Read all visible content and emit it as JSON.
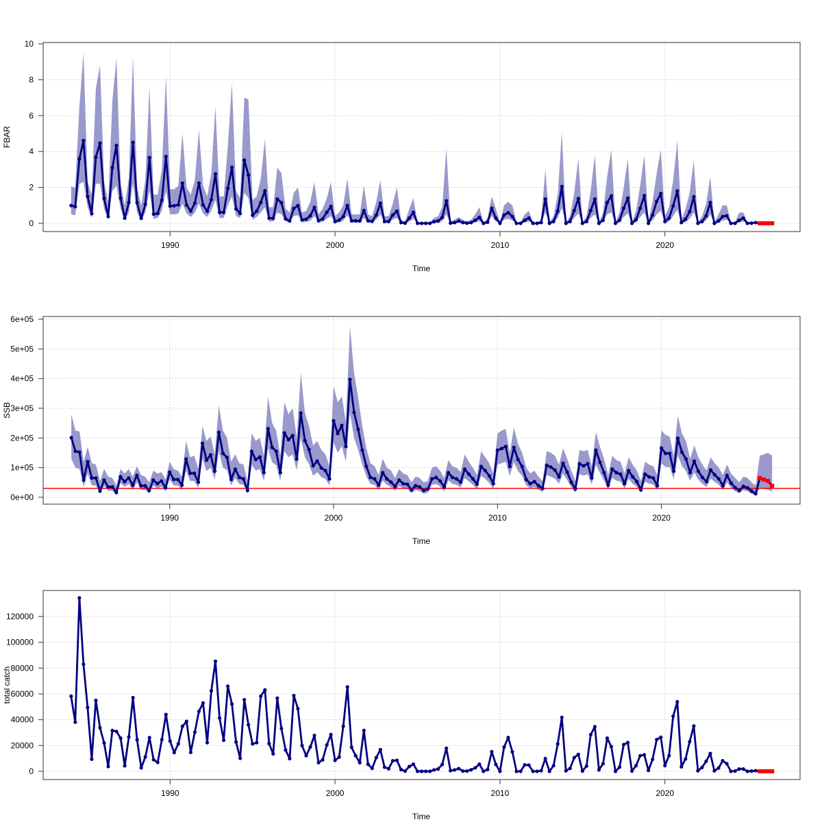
{
  "chart_data": [
    {
      "type": "line",
      "xlabel": "Time",
      "ylabel": "FBAR",
      "x_start": 1984.0,
      "x_step": 0.25,
      "xticks": [
        1990,
        2000,
        2010,
        2020
      ],
      "xtick_labels": [
        "1990",
        "2000",
        "2010",
        "2020"
      ],
      "yticks": [
        0,
        2,
        4,
        6,
        8,
        10
      ],
      "ytick_labels": [
        "0",
        "2",
        "4",
        "6",
        "8",
        "10"
      ],
      "ylim": [
        0,
        10
      ],
      "grid": true,
      "values": [
        0.99,
        0.93,
        3.59,
        4.61,
        1.5,
        0.54,
        3.69,
        4.47,
        1.38,
        0.38,
        3.1,
        4.34,
        1.4,
        0.29,
        1.16,
        4.51,
        1.15,
        0.28,
        1.06,
        3.66,
        0.51,
        0.55,
        1.29,
        3.72,
        0.96,
        0.98,
        1.03,
        2.24,
        1.02,
        0.68,
        1.12,
        2.24,
        1.02,
        0.68,
        1.32,
        2.75,
        0.61,
        0.61,
        1.95,
        3.12,
        0.8,
        0.55,
        3.52,
        2.69,
        0.45,
        0.68,
        1.16,
        1.82,
        0.29,
        0.28,
        1.35,
        1.15,
        0.25,
        0.13,
        0.83,
        0.99,
        0.19,
        0.23,
        0.42,
        0.89,
        0.14,
        0.25,
        0.61,
        0.94,
        0.1,
        0.18,
        0.38,
        0.99,
        0.14,
        0.14,
        0.13,
        0.71,
        0.14,
        0.11,
        0.46,
        1.12,
        0.1,
        0.1,
        0.46,
        0.68,
        0.04,
        0.01,
        0.29,
        0.61,
        0,
        0,
        0,
        0,
        0.09,
        0.13,
        0.33,
        1.25,
        0.01,
        0.04,
        0.13,
        0.04,
        0.01,
        0.04,
        0.17,
        0.33,
        0,
        0.06,
        0.84,
        0.29,
        0,
        0.46,
        0.59,
        0.38,
        0,
        0,
        0.17,
        0.29,
        0,
        0,
        0.04,
        1.35,
        0,
        0.1,
        0.68,
        2.05,
        0,
        0.1,
        0.71,
        1.38,
        0,
        0.1,
        0.71,
        1.35,
        0,
        0.17,
        1.16,
        1.53,
        0,
        0.17,
        0.84,
        1.41,
        0,
        0.2,
        0.84,
        1.54,
        0,
        0.46,
        1.22,
        1.66,
        0.1,
        0.29,
        0.97,
        1.8,
        0.04,
        0.23,
        0.65,
        1.48,
        0,
        0.1,
        0.42,
        1.16,
        0,
        0.13,
        0.38,
        0.42,
        0,
        0,
        0.17,
        0.29,
        0,
        0.01,
        0.04
      ],
      "forecast_values": [
        0,
        0,
        0,
        0
      ],
      "ci_upper": [
        2.05,
        2.0,
        6.5,
        9.5,
        2.3,
        1.6,
        7.5,
        8.8,
        2.3,
        1.2,
        6.8,
        9.2,
        2.2,
        1.0,
        2.5,
        9.3,
        2.0,
        1.0,
        2.4,
        7.6,
        1.6,
        1.6,
        3.0,
        8.2,
        1.9,
        1.9,
        2.1,
        5.0,
        2.0,
        1.6,
        2.4,
        5.2,
        2.1,
        1.5,
        2.8,
        6.5,
        1.5,
        1.5,
        4.3,
        7.8,
        1.8,
        1.4,
        7.0,
        6.9,
        1.3,
        1.5,
        2.5,
        4.7,
        0.9,
        0.9,
        3.1,
        2.8,
        0.8,
        0.6,
        1.7,
        2.0,
        0.6,
        0.7,
        1.2,
        2.3,
        0.5,
        0.8,
        1.4,
        2.3,
        0.4,
        0.6,
        1.0,
        2.5,
        0.5,
        0.5,
        0.5,
        2.1,
        0.5,
        0.4,
        1.2,
        2.4,
        0.4,
        0.4,
        1.1,
        2.0,
        0.2,
        0.1,
        0.8,
        1.4,
        0.05,
        0.05,
        0.05,
        0.05,
        0.3,
        0.4,
        0.9,
        4.2,
        0.1,
        0.2,
        0.35,
        0.2,
        0.1,
        0.2,
        0.5,
        0.9,
        0.05,
        0.3,
        1.5,
        0.8,
        0.05,
        1.0,
        1.2,
        1.0,
        0.05,
        0.05,
        0.5,
        0.7,
        0.05,
        0.05,
        0.2,
        3.0,
        0.05,
        0.4,
        1.6,
        5.1,
        0.05,
        0.4,
        1.7,
        3.6,
        0.05,
        0.4,
        1.8,
        3.8,
        0.05,
        0.6,
        2.6,
        4.1,
        0.05,
        0.6,
        2.0,
        3.6,
        0.05,
        0.7,
        2.1,
        3.8,
        0.1,
        1.2,
        2.8,
        4.1,
        0.4,
        0.9,
        2.4,
        4.6,
        0.2,
        0.8,
        1.7,
        3.5,
        0.05,
        0.4,
        1.1,
        2.6,
        0.05,
        0.5,
        1.0,
        1.0,
        0.05,
        0.05,
        0.6,
        0.6,
        0.05,
        0.05,
        0.1,
        0,
        0,
        0,
        0
      ],
      "ci_lower": [
        0.5,
        0.45,
        2.2,
        2.3,
        0.9,
        0.3,
        2.2,
        2.2,
        0.8,
        0.2,
        1.8,
        2.1,
        0.8,
        0.15,
        0.6,
        2.2,
        0.6,
        0.15,
        0.6,
        1.8,
        0.25,
        0.3,
        0.7,
        1.8,
        0.5,
        0.5,
        0.55,
        1.1,
        0.55,
        0.35,
        0.6,
        1.1,
        0.55,
        0.35,
        0.7,
        1.3,
        0.3,
        0.3,
        1.0,
        1.5,
        0.4,
        0.3,
        1.7,
        1.4,
        0.2,
        0.35,
        0.6,
        0.9,
        0.1,
        0.1,
        0.6,
        0.5,
        0.1,
        0.05,
        0.4,
        0.45,
        0.05,
        0.08,
        0.15,
        0.4,
        0.05,
        0.08,
        0.25,
        0.4,
        0.03,
        0.05,
        0.15,
        0.45,
        0.04,
        0.04,
        0.04,
        0.3,
        0.04,
        0.03,
        0.2,
        0.5,
        0.03,
        0.03,
        0.2,
        0.3,
        0.01,
        0,
        0.1,
        0.25,
        0,
        0,
        0,
        0,
        0.02,
        0.03,
        0.12,
        0.5,
        0,
        0.01,
        0.04,
        0.01,
        0,
        0.01,
        0.05,
        0.12,
        0,
        0.02,
        0.4,
        0.1,
        0,
        0.2,
        0.25,
        0.15,
        0,
        0,
        0.05,
        0.1,
        0,
        0,
        0.01,
        0.6,
        0,
        0.03,
        0.3,
        0.85,
        0,
        0.03,
        0.3,
        0.55,
        0,
        0.03,
        0.3,
        0.5,
        0,
        0.05,
        0.5,
        0.6,
        0,
        0.05,
        0.35,
        0.55,
        0,
        0.06,
        0.35,
        0.6,
        0,
        0.15,
        0.5,
        0.7,
        0.03,
        0.1,
        0.4,
        0.75,
        0.01,
        0.07,
        0.25,
        0.6,
        0,
        0.03,
        0.15,
        0.5,
        0,
        0.04,
        0.15,
        0.2,
        0,
        0,
        0.05,
        0.1,
        0,
        0,
        0.01,
        0,
        0,
        0,
        0
      ]
    },
    {
      "type": "line",
      "xlabel": "Time",
      "ylabel": "SSB",
      "x_start": 1984.0,
      "x_step": 0.25,
      "xticks": [
        1990,
        2000,
        2010,
        2020
      ],
      "xtick_labels": [
        "1990",
        "2000",
        "2010",
        "2020"
      ],
      "yticks": [
        0,
        100000,
        200000,
        300000,
        400000,
        500000,
        600000
      ],
      "ytick_labels": [
        "0e+00",
        "1e+05",
        "2e+05",
        "3e+05",
        "4e+05",
        "5e+05",
        "6e+05"
      ],
      "ylim": [
        0,
        600000
      ],
      "grid": true,
      "reference_line": 30000,
      "values": [
        201000,
        155000,
        152000,
        58000,
        120000,
        65000,
        65000,
        21000,
        58000,
        35000,
        35000,
        16000,
        69000,
        53000,
        65000,
        41000,
        74000,
        39000,
        39000,
        23000,
        58000,
        46000,
        55000,
        32000,
        85000,
        60000,
        60000,
        41000,
        129000,
        81000,
        81000,
        51000,
        182000,
        125000,
        143000,
        88000,
        219000,
        148000,
        134000,
        60000,
        95000,
        67000,
        62000,
        23000,
        155000,
        127000,
        136000,
        83000,
        231000,
        168000,
        155000,
        83000,
        217000,
        194000,
        208000,
        129000,
        284000,
        191000,
        161000,
        106000,
        122000,
        99000,
        90000,
        62000,
        258000,
        215000,
        242000,
        171000,
        397000,
        286000,
        229000,
        159000,
        104000,
        67000,
        62000,
        41000,
        83000,
        62000,
        51000,
        37000,
        58000,
        46000,
        44000,
        25000,
        39000,
        35000,
        23000,
        28000,
        62000,
        67000,
        55000,
        35000,
        83000,
        67000,
        62000,
        51000,
        95000,
        78000,
        62000,
        44000,
        104000,
        90000,
        72000,
        46000,
        159000,
        164000,
        171000,
        104000,
        168000,
        127000,
        104000,
        60000,
        46000,
        53000,
        39000,
        30000,
        108000,
        102000,
        92000,
        69000,
        115000,
        85000,
        51000,
        28000,
        113000,
        106000,
        113000,
        65000,
        159000,
        118000,
        83000,
        41000,
        95000,
        83000,
        78000,
        46000,
        90000,
        69000,
        53000,
        25000,
        78000,
        69000,
        65000,
        39000,
        166000,
        148000,
        148000,
        88000,
        199000,
        152000,
        129000,
        83000,
        122000,
        88000,
        67000,
        53000,
        92000,
        76000,
        62000,
        39000,
        74000,
        48000,
        32000,
        23000,
        37000,
        32000,
        21000,
        12000
      ],
      "forecast_values": [
        65000,
        60000,
        55000,
        39000
      ],
      "ci_upper": [
        280000,
        225000,
        222000,
        120000,
        170000,
        115000,
        110000,
        55000,
        95000,
        70000,
        65000,
        40000,
        95000,
        80000,
        95000,
        70000,
        105000,
        75000,
        70000,
        50000,
        90000,
        80000,
        85000,
        60000,
        120000,
        95000,
        90000,
        70000,
        190000,
        135000,
        140000,
        95000,
        240000,
        190000,
        205000,
        145000,
        310000,
        225000,
        200000,
        120000,
        145000,
        115000,
        110000,
        55000,
        215000,
        190000,
        200000,
        140000,
        340000,
        250000,
        225000,
        140000,
        320000,
        280000,
        300000,
        200000,
        420000,
        285000,
        240000,
        175000,
        190000,
        160000,
        145000,
        105000,
        375000,
        320000,
        340000,
        255000,
        575000,
        420000,
        335000,
        240000,
        165000,
        115000,
        105000,
        75000,
        130000,
        100000,
        90000,
        65000,
        95000,
        80000,
        75000,
        50000,
        70000,
        65000,
        50000,
        55000,
        100000,
        105000,
        90000,
        65000,
        125000,
        105000,
        100000,
        85000,
        145000,
        120000,
        100000,
        75000,
        155000,
        135000,
        115000,
        80000,
        215000,
        225000,
        230000,
        150000,
        235000,
        180000,
        150000,
        100000,
        80000,
        90000,
        70000,
        55000,
        155000,
        150000,
        140000,
        110000,
        165000,
        130000,
        90000,
        55000,
        160000,
        155000,
        160000,
        105000,
        220000,
        170000,
        130000,
        75000,
        140000,
        125000,
        120000,
        80000,
        135000,
        110000,
        90000,
        55000,
        120000,
        110000,
        105000,
        75000,
        225000,
        210000,
        205000,
        140000,
        275000,
        215000,
        190000,
        130000,
        175000,
        135000,
        110000,
        90000,
        135000,
        115000,
        100000,
        75000,
        110000,
        80000,
        65000,
        50000,
        70000,
        65000,
        50000,
        40000,
        140000,
        145000,
        150000,
        140000
      ],
      "ci_lower": [
        130000,
        100000,
        95000,
        35000,
        80000,
        40000,
        40000,
        12000,
        38000,
        22000,
        22000,
        8000,
        48000,
        35000,
        45000,
        25000,
        50000,
        25000,
        25000,
        13000,
        40000,
        30000,
        36000,
        20000,
        60000,
        40000,
        40000,
        25000,
        90000,
        55000,
        55000,
        32000,
        130000,
        88000,
        100000,
        60000,
        155000,
        100000,
        92000,
        40000,
        65000,
        45000,
        42000,
        12000,
        110000,
        90000,
        95000,
        55000,
        165000,
        118000,
        108000,
        55000,
        155000,
        135000,
        145000,
        90000,
        200000,
        135000,
        112000,
        72000,
        85000,
        68000,
        62000,
        40000,
        185000,
        150000,
        172000,
        120000,
        285000,
        200000,
        160000,
        110000,
        70000,
        45000,
        42000,
        25000,
        56000,
        42000,
        34000,
        22000,
        38000,
        30000,
        28000,
        14000,
        24000,
        21000,
        12000,
        16000,
        42000,
        45000,
        36000,
        20000,
        57000,
        45000,
        42000,
        33000,
        65000,
        53000,
        42000,
        28000,
        72000,
        62000,
        48000,
        28000,
        110000,
        115000,
        120000,
        72000,
        118000,
        88000,
        72000,
        40000,
        30000,
        35000,
        25000,
        18000,
        75000,
        70000,
        63000,
        46000,
        80000,
        58000,
        34000,
        16000,
        78000,
        73000,
        78000,
        43000,
        110000,
        82000,
        56000,
        26000,
        65000,
        56000,
        53000,
        30000,
        62000,
        46000,
        35000,
        15000,
        53000,
        46000,
        43000,
        25000,
        115000,
        102000,
        102000,
        60000,
        140000,
        106000,
        88000,
        56000,
        84000,
        60000,
        45000,
        35000,
        63000,
        52000,
        42000,
        25000,
        50000,
        32000,
        20000,
        14000,
        24000,
        20000,
        12000,
        6000,
        30000,
        28000,
        26000,
        20000
      ]
    },
    {
      "type": "line",
      "xlabel": "Time",
      "ylabel": "total catch",
      "x_start": 1984.0,
      "x_step": 0.25,
      "xticks": [
        1990,
        2000,
        2010,
        2020
      ],
      "xtick_labels": [
        "1990",
        "2000",
        "2010",
        "2020"
      ],
      "yticks": [
        0,
        20000,
        40000,
        60000,
        80000,
        100000,
        120000
      ],
      "ytick_labels": [
        "0",
        "20000",
        "40000",
        "60000",
        "80000",
        "100000",
        "120000"
      ],
      "ylim": [
        0,
        120000
      ],
      "grid": true,
      "values": [
        58200,
        38100,
        134400,
        83000,
        49500,
        9400,
        55000,
        33700,
        22000,
        3700,
        31600,
        30900,
        25700,
        4300,
        26600,
        57100,
        24500,
        2700,
        11200,
        26100,
        9000,
        6900,
        24600,
        44000,
        23400,
        14500,
        21300,
        34900,
        38700,
        14700,
        30300,
        46500,
        53000,
        22200,
        62400,
        85300,
        41300,
        24100,
        66000,
        52100,
        22700,
        10100,
        55500,
        36000,
        21300,
        22200,
        58300,
        63100,
        21500,
        13500,
        56700,
        33200,
        16500,
        9800,
        58700,
        48600,
        19900,
        12100,
        18800,
        27800,
        6700,
        8900,
        20400,
        28500,
        8500,
        11000,
        34900,
        65400,
        18600,
        12100,
        6700,
        31700,
        5500,
        2300,
        10600,
        16800,
        3200,
        2000,
        8200,
        8500,
        1400,
        200,
        3700,
        5500,
        0,
        0,
        0,
        0,
        1100,
        1800,
        5300,
        17900,
        500,
        1100,
        2100,
        200,
        200,
        1200,
        2700,
        5500,
        0,
        1400,
        15200,
        5300,
        0,
        18800,
        26200,
        15100,
        0,
        0,
        5000,
        4800,
        0,
        0,
        500,
        9900,
        0,
        4400,
        21300,
        41800,
        400,
        2300,
        10600,
        13100,
        200,
        4100,
        28400,
        34600,
        1100,
        5900,
        25700,
        19100,
        0,
        3200,
        20700,
        22300,
        200,
        4400,
        12100,
        12800,
        700,
        9200,
        24600,
        26400,
        4400,
        12100,
        42700,
        53900,
        3500,
        9600,
        23000,
        35100,
        400,
        3000,
        7800,
        13800,
        400,
        2500,
        8200,
        5900,
        0,
        200,
        1800,
        1800,
        0,
        200,
        500
      ],
      "forecast_values": [
        0,
        0,
        0,
        0
      ]
    }
  ],
  "colors": {
    "line": "#000080",
    "confidence_band": "#9999cc",
    "forecast": "#ff0000",
    "reference_line": "#ff0000",
    "grid": "#c8c8c8"
  }
}
